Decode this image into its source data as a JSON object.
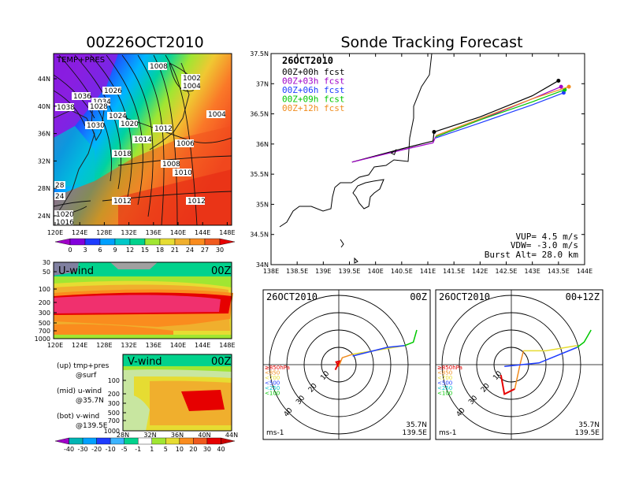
{
  "left": {
    "title": "00Z26OCT2010",
    "map_label": "TEMP+PRES",
    "lat_ticks": [
      "44N",
      "40N",
      "36N",
      "32N",
      "28N",
      "24N"
    ],
    "lon_ticks": [
      "120E",
      "124E",
      "128E",
      "132E",
      "136E",
      "140E",
      "144E",
      "148E"
    ],
    "isobars": [
      "1008",
      "1002",
      "1004",
      "1036",
      "1026",
      "1034",
      "1038",
      "1028",
      "1024",
      "1030",
      "1020",
      "1012",
      "1004",
      "1014",
      "1006",
      "1018",
      "1008",
      "1010",
      "1012",
      "1012",
      "1020",
      "1016",
      "28",
      "24"
    ],
    "temp_scale_labels": [
      "0",
      "3",
      "6",
      "9",
      "12",
      "15",
      "18",
      "21",
      "24",
      "27",
      "30"
    ],
    "temp_scale_colors": [
      "#a000c8",
      "#8200dc",
      "#1e3cff",
      "#00a0ff",
      "#00c8c8",
      "#00d28c",
      "#a0e632",
      "#e6dc32",
      "#f0af2d",
      "#fa8c1e",
      "#f05a1e",
      "#e60000"
    ],
    "uwind": {
      "label": "U-wind",
      "time": "00Z",
      "y_ticks": [
        "30",
        "50",
        "100",
        "200",
        "300",
        "500",
        "700",
        "1000"
      ],
      "x_ticks": [
        "120E",
        "124E",
        "128E",
        "132E",
        "136E",
        "140E",
        "144E",
        "148E"
      ]
    },
    "vwind": {
      "label": "V-wind",
      "time": "00Z",
      "y_ticks": [
        "100",
        "200",
        "300",
        "500",
        "700",
        "1000"
      ],
      "x_ticks": [
        "28N",
        "32N",
        "36N",
        "40N",
        "44N"
      ]
    },
    "notes": [
      "(up) tmp+pres",
      "@surf",
      "(mid) u-wind",
      "@35.7N",
      "(bot) v-wind",
      "@139.5E"
    ],
    "wind_scale_labels": [
      "-40",
      "-30",
      "-20",
      "-10",
      "-5",
      "-1",
      "1",
      "5",
      "10",
      "20",
      "30",
      "40"
    ],
    "wind_scale_colors": [
      "#a000c8",
      "#00b4b4",
      "#00a0ff",
      "#1e3cff",
      "#3cb4ff",
      "#00d28c",
      "#ffffff",
      "#a0e632",
      "#e6dc32",
      "#fa8c1e",
      "#f05a1e",
      "#e60000",
      "#c80000"
    ]
  },
  "main": {
    "title": "Sonde Tracking Forecast",
    "date": "26OCT2010",
    "lat_ticks": [
      "37.5N",
      "37N",
      "36.5N",
      "36N",
      "35.5N",
      "35N",
      "34.5N",
      "34N"
    ],
    "lon_ticks": [
      "138E",
      "138.5E",
      "139E",
      "139.5E",
      "140E",
      "140.5E",
      "141E",
      "141.5E",
      "142E",
      "142.5E",
      "143E",
      "143.5E",
      "144E"
    ],
    "legend": [
      {
        "label": "00Z+00h fcst",
        "color": "#000000"
      },
      {
        "label": "00Z+03h fcst",
        "color": "#a000c8"
      },
      {
        "label": "00Z+06h fcst",
        "color": "#1e3cff"
      },
      {
        "label": "00Z+09h fcst",
        "color": "#00c800"
      },
      {
        "label": "00Z+12h fcst",
        "color": "#f08c1e"
      }
    ],
    "params": [
      "VUP= 4.5 m/s",
      "VDW= -3.0 m/s",
      "Burst Alt= 28.0 km"
    ]
  },
  "hodo_left": {
    "date": "26OCT2010",
    "time": "00Z",
    "ring_labels": [
      "10",
      "20",
      "30",
      "40"
    ],
    "levels": [
      {
        "label": "≥850hPa",
        "color": "#e60000"
      },
      {
        "label": "<850",
        "color": "#f08c1e"
      },
      {
        "label": "<700",
        "color": "#e6dc32"
      },
      {
        "label": "<500",
        "color": "#1e3cff"
      },
      {
        "label": "<250",
        "color": "#00c8c8"
      },
      {
        "label": "<100",
        "color": "#00c800"
      }
    ],
    "unit": "ms-1",
    "loc1": "35.7N",
    "loc2": "139.5E"
  },
  "hodo_right": {
    "date": "26OCT2010",
    "time": "00+12Z",
    "ring_labels": [
      "10",
      "20",
      "30",
      "40"
    ],
    "levels": [
      {
        "label": "≥850hPa",
        "color": "#e60000"
      },
      {
        "label": "<850",
        "color": "#f08c1e"
      },
      {
        "label": "<700",
        "color": "#e6dc32"
      },
      {
        "label": "<500",
        "color": "#1e3cff"
      },
      {
        "label": "<250",
        "color": "#00c8c8"
      },
      {
        "label": "<100",
        "color": "#00c800"
      }
    ],
    "unit": "ms-1",
    "loc1": "35.7N",
    "loc2": "139.5E"
  },
  "chart_data": [
    {
      "type": "line",
      "title": "Sonde Tracking Forecast",
      "xlabel": "",
      "ylabel": "",
      "xlim": [
        138,
        144
      ],
      "ylim": [
        34,
        37.5
      ],
      "series": [
        {
          "name": "00Z+00h fcst",
          "points": [
            [
              139.55,
              35.7
            ],
            [
              140.5,
              35.92
            ],
            [
              141.1,
              36.05
            ],
            [
              141.12,
              36.2
            ],
            [
              142.0,
              36.45
            ],
            [
              143.0,
              36.8
            ],
            [
              143.5,
              37.05
            ]
          ]
        },
        {
          "name": "00Z+03h fcst",
          "points": [
            [
              139.55,
              35.7
            ],
            [
              140.5,
              35.9
            ],
            [
              141.1,
              36.02
            ],
            [
              141.15,
              36.12
            ],
            [
              142.0,
              36.4
            ],
            [
              143.0,
              36.75
            ],
            [
              143.55,
              36.95
            ]
          ]
        },
        {
          "name": "00Z+06h fcst",
          "points": [
            [
              141.15,
              36.1
            ],
            [
              142.0,
              36.35
            ],
            [
              143.0,
              36.65
            ],
            [
              143.6,
              36.85
            ]
          ]
        },
        {
          "name": "00Z+09h fcst",
          "points": [
            [
              141.15,
              36.12
            ],
            [
              142.0,
              36.4
            ],
            [
              143.0,
              36.7
            ],
            [
              143.62,
              36.9
            ]
          ]
        },
        {
          "name": "00Z+12h fcst",
          "points": [
            [
              141.15,
              36.14
            ],
            [
              142.0,
              36.42
            ],
            [
              143.0,
              36.75
            ],
            [
              143.7,
              36.95
            ]
          ]
        }
      ]
    },
    {
      "type": "line",
      "title": "",
      "series": [
        {
          "name": "≥850hPa",
          "points": [
            [
              -2,
              -3
            ],
            [
              0.5,
              2
            ],
            [
              -1.5,
              1.5
            ],
            [
              0,
              -1
            ]
          ]
        },
        {
          "name": "<850",
          "points": [
            [
              0,
              -1
            ],
            [
              2,
              4
            ],
            [
              8,
              6
            ]
          ]
        },
        {
          "name": "<700",
          "points": [
            [
              8,
              6
            ],
            [
              20,
              8
            ],
            [
              38,
              11
            ]
          ]
        },
        {
          "name": "<500",
          "points": [
            [
              8,
              5
            ],
            [
              28,
              10
            ],
            [
              38,
              11
            ]
          ]
        },
        {
          "name": "<100",
          "points": [
            [
              38,
              11
            ],
            [
              43,
              13
            ],
            [
              45,
              20
            ]
          ]
        }
      ]
    },
    {
      "type": "line",
      "title": "",
      "series": [
        {
          "name": "≥850hPa",
          "points": [
            [
              -6,
              -6
            ],
            [
              -4,
              -17
            ],
            [
              2,
              -14
            ]
          ]
        },
        {
          "name": "<850",
          "points": [
            [
              2,
              -14
            ],
            [
              5,
              0
            ],
            [
              7,
              8
            ]
          ]
        },
        {
          "name": "<700",
          "points": [
            [
              7,
              8
            ],
            [
              20,
              8
            ],
            [
              38,
              11
            ]
          ]
        },
        {
          "name": "<500",
          "points": [
            [
              -4,
              -1
            ],
            [
              16,
              1
            ],
            [
              38,
              10
            ]
          ]
        },
        {
          "name": "<100",
          "points": [
            [
              38,
              10
            ],
            [
              42,
              13
            ],
            [
              46,
              20
            ]
          ]
        }
      ]
    }
  ]
}
